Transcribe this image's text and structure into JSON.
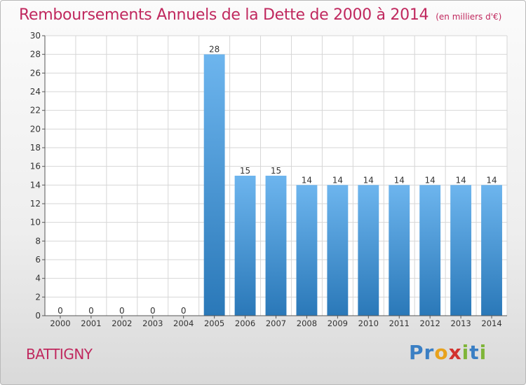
{
  "header": {
    "title": "Remboursements Annuels de la Dette de 2000 à 2014",
    "unit": "(en milliers d'€)"
  },
  "footer": {
    "commune": "BATTIGNY",
    "logo_letters": [
      {
        "char": "P",
        "color": "#3a7fc4"
      },
      {
        "char": "r",
        "color": "#3a7fc4"
      },
      {
        "char": "o",
        "color": "#e8a21c"
      },
      {
        "char": "x",
        "color": "#d2322d"
      },
      {
        "char": "i",
        "color": "#7fb539"
      },
      {
        "char": "t",
        "color": "#3a7fc4"
      },
      {
        "char": "i",
        "color": "#7fb539"
      }
    ]
  },
  "colors": {
    "bar_top": "#6db5ee",
    "bar_bottom": "#2a78b8",
    "accent": "#c0285e",
    "grid": "#d6d6d6"
  },
  "chart_data": {
    "type": "bar",
    "categories": [
      "2000",
      "2001",
      "2002",
      "2003",
      "2004",
      "2005",
      "2006",
      "2007",
      "2008",
      "2009",
      "2010",
      "2011",
      "2012",
      "2013",
      "2014"
    ],
    "values": [
      0,
      0,
      0,
      0,
      0,
      28,
      15,
      15,
      14,
      14,
      14,
      14,
      14,
      14,
      14
    ],
    "data_labels": [
      "0",
      "0",
      "0",
      "0",
      "0",
      "28",
      "15",
      "15",
      "14",
      "14",
      "14",
      "14",
      "14",
      "14",
      "14"
    ],
    "y_ticks": [
      0,
      2,
      4,
      6,
      8,
      10,
      12,
      14,
      16,
      18,
      20,
      22,
      24,
      26,
      28,
      30
    ],
    "ylim": [
      0,
      30
    ],
    "grid": true,
    "legend": "none"
  }
}
